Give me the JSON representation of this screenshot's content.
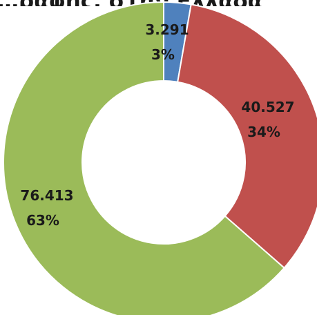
{
  "chart_data": {
    "type": "pie",
    "variant": "donut",
    "title": "…ραφής, στην Ελλάδα",
    "slices": [
      {
        "value": 3.291,
        "value_label": "3.291",
        "percent_label": "3%",
        "color": "#4f81bd"
      },
      {
        "value": 40.527,
        "value_label": "40.527",
        "percent_label": "34%",
        "color": "#c0504d"
      },
      {
        "value": 76.413,
        "value_label": "76.413",
        "percent_label": "63%",
        "color": "#9bbb59"
      }
    ],
    "legend": "none",
    "grid": false
  }
}
